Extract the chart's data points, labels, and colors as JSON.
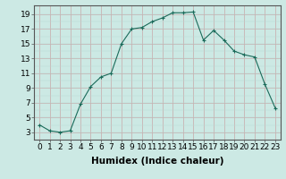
{
  "x": [
    0,
    1,
    2,
    3,
    4,
    5,
    6,
    7,
    8,
    9,
    10,
    11,
    12,
    13,
    14,
    15,
    16,
    17,
    18,
    19,
    20,
    21,
    22,
    23
  ],
  "y": [
    4,
    3.2,
    3,
    3.2,
    6.8,
    9.2,
    10.5,
    11,
    15,
    17,
    17.2,
    18,
    18.5,
    19.2,
    19.2,
    19.3,
    15.5,
    16.8,
    15.5,
    14,
    13.5,
    13.2,
    9.5,
    6.3
  ],
  "line_color": "#1a6b5a",
  "marker": "+",
  "marker_color": "#1a6b5a",
  "bg_color": "#cce9e4",
  "grid_color_major": "#c8a0a0",
  "grid_color_minor": "#b8ddd8",
  "xlabel": "Humidex (Indice chaleur)",
  "ylabel": "",
  "title": "",
  "xlim": [
    -0.5,
    23.5
  ],
  "ylim": [
    2,
    20.2
  ],
  "yticks": [
    3,
    5,
    7,
    9,
    11,
    13,
    15,
    17,
    19
  ],
  "xtick_labels": [
    "0",
    "1",
    "2",
    "3",
    "4",
    "5",
    "6",
    "7",
    "8",
    "9",
    "10",
    "11",
    "12",
    "13",
    "14",
    "15",
    "16",
    "17",
    "18",
    "19",
    "20",
    "21",
    "22",
    "23"
  ],
  "font_size": 6.5,
  "xlabel_font_size": 7.5
}
